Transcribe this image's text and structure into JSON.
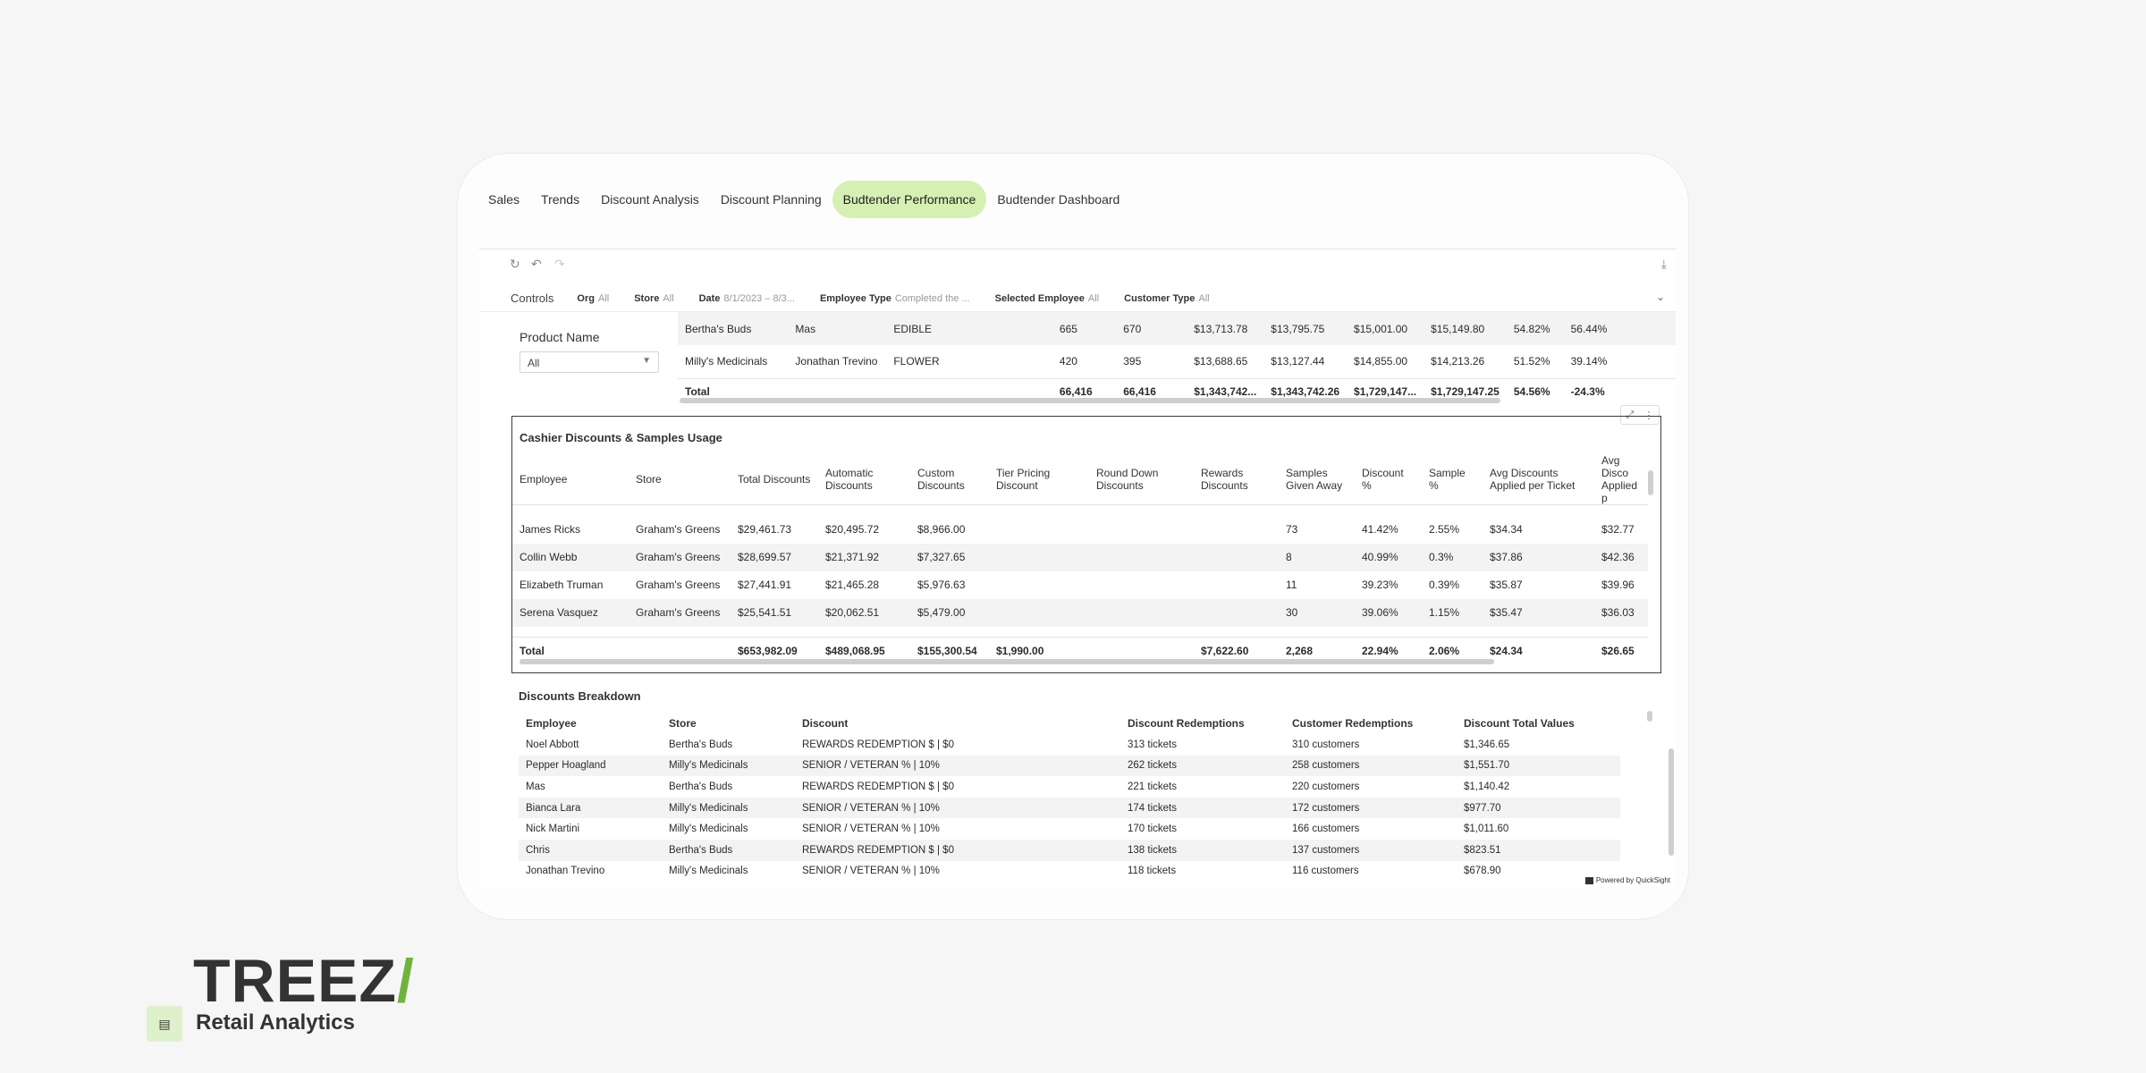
{
  "tabs": [
    {
      "label": "Sales"
    },
    {
      "label": "Trends"
    },
    {
      "label": "Discount Analysis"
    },
    {
      "label": "Discount Planning"
    },
    {
      "label": "Budtender Performance"
    },
    {
      "label": "Budtender Dashboard"
    }
  ],
  "active_tab": "Budtender Performance",
  "controls": {
    "title": "Controls",
    "items": [
      {
        "name": "Org",
        "value": "All"
      },
      {
        "name": "Store",
        "value": "All"
      },
      {
        "name": "Date",
        "value": "8/1/2023 – 8/3..."
      },
      {
        "name": "Employee Type",
        "value": "Completed the ..."
      },
      {
        "name": "Selected Employee",
        "value": "All"
      },
      {
        "name": "Customer Type",
        "value": "All"
      }
    ]
  },
  "product_filter": {
    "label": "Product Name",
    "value": "All"
  },
  "top_table": {
    "rows": [
      [
        "Bertha's Buds",
        "Mas",
        "EDIBLE",
        "665",
        "670",
        "$13,713.78",
        "$13,795.75",
        "$15,001.00",
        "$15,149.80",
        "54.82%",
        "56.44%"
      ],
      [
        "Milly's Medicinals",
        "Jonathan Trevino",
        "FLOWER",
        "420",
        "395",
        "$13,688.65",
        "$13,127.44",
        "$14,855.00",
        "$14,213.26",
        "51.52%",
        "39.14%"
      ]
    ],
    "total": [
      "Total",
      "",
      "",
      "66,416",
      "66,416",
      "$1,343,742...",
      "$1,343,742.26",
      "$1,729,147...",
      "$1,729,147.25",
      "54.56%",
      "-24.3%"
    ]
  },
  "cashier": {
    "title": "Cashier Discounts & Samples Usage",
    "headers": [
      "Employee",
      "Store",
      "Total Discounts",
      "Automatic Discounts",
      "Custom Discounts",
      "Tier Pricing Discount",
      "Round Down Discounts",
      "Rewards Discounts",
      "Samples Given Away",
      "Discount %",
      "Sample %",
      "Avg Discounts Applied per Ticket",
      "Avg Disco Applied p"
    ],
    "rows": [
      [
        "James Ricks",
        "Graham's Greens",
        "$29,461.73",
        "$20,495.72",
        "$8,966.00",
        "",
        "",
        "",
        "73",
        "41.42%",
        "2.55%",
        "$34.34",
        "$32.77"
      ],
      [
        "Collin Webb",
        "Graham's Greens",
        "$28,699.57",
        "$21,371.92",
        "$7,327.65",
        "",
        "",
        "",
        "8",
        "40.99%",
        "0.3%",
        "$37.86",
        "$42.36"
      ],
      [
        "Elizabeth Truman",
        "Graham's Greens",
        "$27,441.91",
        "$21,465.28",
        "$5,976.63",
        "",
        "",
        "",
        "11",
        "39.23%",
        "0.39%",
        "$35.87",
        "$39.96"
      ],
      [
        "Serena Vasquez",
        "Graham's Greens",
        "$25,541.51",
        "$20,062.51",
        "$5,479.00",
        "",
        "",
        "",
        "30",
        "39.06%",
        "1.15%",
        "$35.47",
        "$36.03"
      ]
    ],
    "total": [
      "Total",
      "",
      "$653,982.09",
      "$489,068.95",
      "$155,300.54",
      "$1,990.00",
      "",
      "$7,622.60",
      "2,268",
      "22.94%",
      "2.06%",
      "$24.34",
      "$26.65"
    ]
  },
  "breakdown": {
    "title": "Discounts Breakdown",
    "headers": [
      "Employee",
      "Store",
      "Discount",
      "Discount Redemptions",
      "Customer Redemptions",
      "Discount Total Values"
    ],
    "rows": [
      [
        "Noel Abbott",
        "Bertha's Buds",
        "REWARDS REDEMPTION $ | $0",
        "313 tickets",
        "310 customers",
        "$1,346.65"
      ],
      [
        "Pepper Hoagland",
        "Milly's Medicinals",
        "SENIOR / VETERAN % | 10%",
        "262 tickets",
        "258 customers",
        "$1,551.70"
      ],
      [
        "Mas",
        "Bertha's Buds",
        "REWARDS REDEMPTION $ | $0",
        "221 tickets",
        "220 customers",
        "$1,140.42"
      ],
      [
        "Bianca Lara",
        "Milly's Medicinals",
        "SENIOR / VETERAN % | 10%",
        "174 tickets",
        "172 customers",
        "$977.70"
      ],
      [
        "Nick Martini",
        "Milly's Medicinals",
        "SENIOR / VETERAN % | 10%",
        "170 tickets",
        "166 customers",
        "$1,011.60"
      ],
      [
        "Chris",
        "Bertha's Buds",
        "REWARDS REDEMPTION $ | $0",
        "138 tickets",
        "137 customers",
        "$823.51"
      ],
      [
        "Jonathan Trevino",
        "Milly's Medicinals",
        "SENIOR / VETERAN % | 10%",
        "118 tickets",
        "116 customers",
        "$678.90"
      ]
    ]
  },
  "powered_by": "Powered by QuickSight",
  "brand": {
    "logo": "TREEZ",
    "product": "Retail Analytics"
  },
  "colors": {
    "accent": "#d6f0b4",
    "brand_green": "#6fb33d"
  }
}
